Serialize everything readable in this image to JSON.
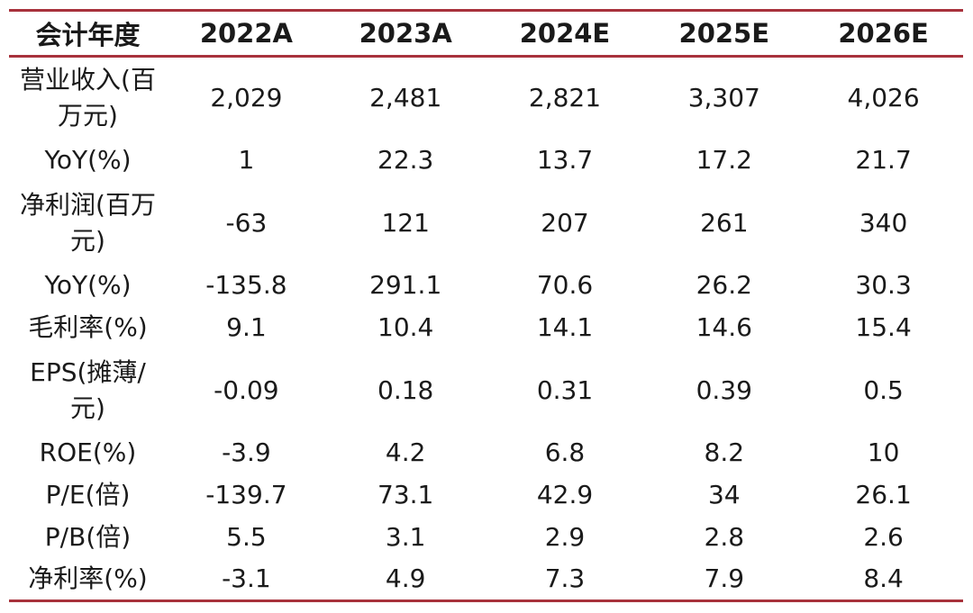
{
  "table": {
    "header": {
      "label": "会计年度",
      "years": [
        "2022A",
        "2023A",
        "2024E",
        "2025E",
        "2026E"
      ]
    },
    "rows": [
      {
        "label": "营业收入(百万元)",
        "values": [
          "2,029",
          "2,481",
          "2,821",
          "3,307",
          "4,026"
        ]
      },
      {
        "label": "YoY(%)",
        "values": [
          "1",
          "22.3",
          "13.7",
          "17.2",
          "21.7"
        ]
      },
      {
        "label": "净利润(百万元)",
        "values": [
          "-63",
          "121",
          "207",
          "261",
          "340"
        ]
      },
      {
        "label": "YoY(%)",
        "values": [
          "-135.8",
          "291.1",
          "70.6",
          "26.2",
          "30.3"
        ]
      },
      {
        "label": "毛利率(%)",
        "values": [
          "9.1",
          "10.4",
          "14.1",
          "14.6",
          "15.4"
        ]
      },
      {
        "label": "EPS(摊薄/元)",
        "values": [
          "-0.09",
          "0.18",
          "0.31",
          "0.39",
          "0.5"
        ]
      },
      {
        "label": "ROE(%)",
        "values": [
          "-3.9",
          "4.2",
          "6.8",
          "8.2",
          "10"
        ]
      },
      {
        "label": "P/E(倍)",
        "values": [
          "-139.7",
          "73.1",
          "42.9",
          "34",
          "26.1"
        ]
      },
      {
        "label": "P/B(倍)",
        "values": [
          "5.5",
          "3.1",
          "2.9",
          "2.8",
          "2.6"
        ]
      },
      {
        "label": "净利率(%)",
        "values": [
          "-3.1",
          "4.9",
          "7.3",
          "7.9",
          "8.4"
        ]
      }
    ]
  }
}
